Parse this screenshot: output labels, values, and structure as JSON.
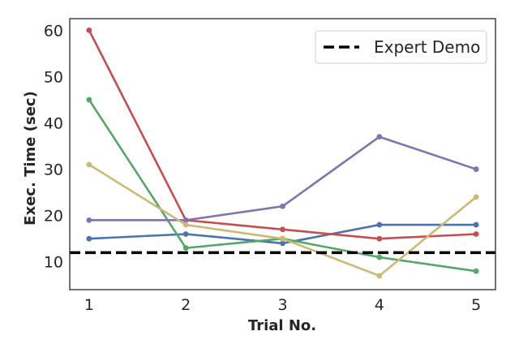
{
  "chart_data": {
    "type": "line",
    "title": "",
    "xlabel": "Trial No.",
    "ylabel": "Exec. Time (sec)",
    "x": [
      1,
      2,
      3,
      4,
      5
    ],
    "xlim": [
      0.8,
      5.2
    ],
    "ylim": [
      4,
      62.5
    ],
    "xticks": [
      "1",
      "2",
      "3",
      "4",
      "5"
    ],
    "yticks": [
      "10",
      "20",
      "30",
      "40",
      "50",
      "60"
    ],
    "grid": false,
    "legend": {
      "position": "top-right",
      "entries": [
        "Expert Demo"
      ]
    },
    "reference_line": {
      "name": "Expert Demo",
      "y": 12,
      "style": "dashed",
      "color": "#000000"
    },
    "series": [
      {
        "values": [
          15,
          16,
          14,
          18,
          18
        ],
        "color": "#4C72B0"
      },
      {
        "values": [
          45,
          13,
          15,
          11,
          8
        ],
        "color": "#55A868"
      },
      {
        "values": [
          60,
          19,
          17,
          15,
          16
        ],
        "color": "#C44E52"
      },
      {
        "values": [
          19,
          19,
          22,
          37,
          30
        ],
        "color": "#8172B2"
      },
      {
        "values": [
          31,
          18,
          15,
          7,
          24
        ],
        "color": "#CCB974"
      }
    ]
  }
}
